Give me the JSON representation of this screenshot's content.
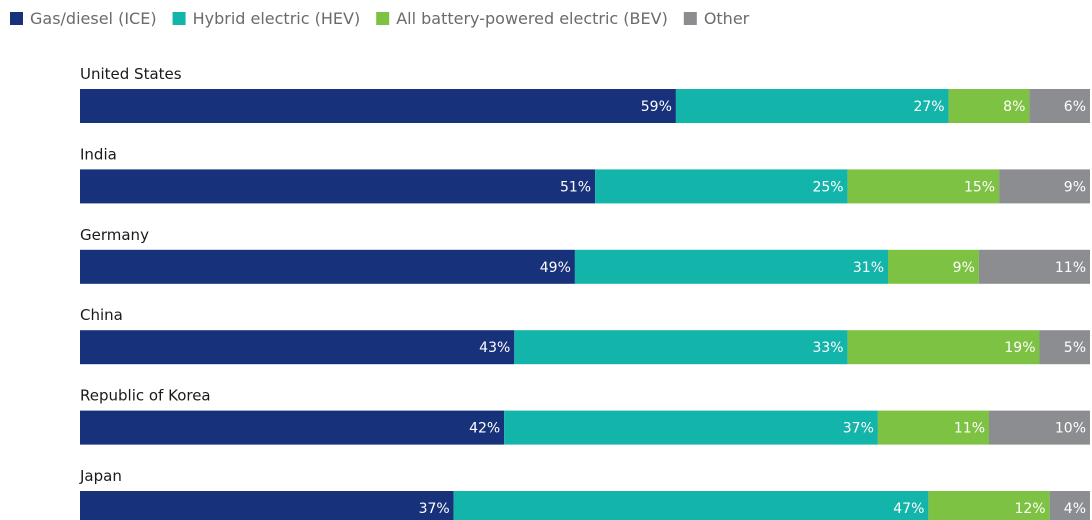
{
  "chart_data": {
    "type": "bar",
    "orientation": "horizontal",
    "stacked": true,
    "grid": false,
    "legend_position": "top-left",
    "value_label_suffix": "%",
    "categories": [
      "United States",
      "India",
      "Germany",
      "China",
      "Republic of Korea",
      "Japan"
    ],
    "series": [
      {
        "name": "Gas/diesel (ICE)",
        "color": "#17317a",
        "values": [
          59,
          51,
          49,
          43,
          42,
          37
        ]
      },
      {
        "name": "Hybrid electric (HEV)",
        "color": "#13b4aa",
        "values": [
          27,
          25,
          31,
          33,
          37,
          47
        ]
      },
      {
        "name": "All battery-powered electric (BEV)",
        "color": "#7dc242",
        "values": [
          8,
          15,
          9,
          19,
          11,
          12
        ]
      },
      {
        "name": "Other",
        "color": "#8c8d91",
        "values": [
          6,
          9,
          11,
          5,
          10,
          4
        ]
      }
    ]
  }
}
